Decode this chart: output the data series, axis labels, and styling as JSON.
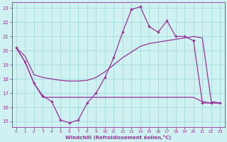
{
  "xlabel": "Windchill (Refroidissement éolien,°C)",
  "xlim": [
    -0.5,
    23.5
  ],
  "ylim": [
    14.6,
    23.4
  ],
  "yticks": [
    15,
    16,
    17,
    18,
    19,
    20,
    21,
    22,
    23
  ],
  "xticks": [
    0,
    1,
    2,
    3,
    4,
    5,
    6,
    7,
    8,
    9,
    10,
    11,
    12,
    13,
    14,
    15,
    16,
    17,
    18,
    19,
    20,
    21,
    22,
    23
  ],
  "bg_color": "#cff1f1",
  "grid_color": "#a8dede",
  "line_color": "#993399",
  "marker_line_x": [
    0,
    1,
    2,
    3,
    4,
    5,
    6,
    7,
    8,
    9,
    10,
    11,
    12,
    13,
    14,
    15,
    16,
    17,
    18,
    19,
    20,
    21,
    22,
    23
  ],
  "marker_line_y": [
    20.2,
    19.2,
    17.7,
    16.8,
    16.4,
    15.1,
    14.9,
    15.1,
    16.3,
    17.0,
    18.1,
    19.5,
    21.3,
    22.9,
    23.1,
    21.7,
    21.3,
    22.1,
    21.0,
    21.0,
    20.7,
    16.3,
    16.3,
    16.3
  ],
  "smooth_line_x": [
    0,
    1,
    2,
    3,
    4,
    5,
    6,
    7,
    8,
    9,
    10,
    11,
    12,
    13,
    14,
    15,
    16,
    17,
    18,
    19,
    20,
    21,
    22,
    23
  ],
  "smooth_line_y": [
    20.2,
    19.6,
    18.3,
    18.1,
    18.0,
    17.9,
    17.85,
    17.85,
    17.9,
    18.1,
    18.5,
    19.0,
    19.5,
    19.9,
    20.3,
    20.5,
    20.6,
    20.7,
    20.8,
    20.9,
    21.0,
    20.9,
    16.4,
    16.3
  ],
  "flat_line_x": [
    0,
    1,
    2,
    3,
    4,
    5,
    6,
    7,
    8,
    9,
    10,
    11,
    12,
    13,
    14,
    15,
    16,
    17,
    18,
    19,
    20,
    21,
    22,
    23
  ],
  "flat_line_y": [
    20.2,
    19.2,
    17.7,
    16.7,
    16.7,
    16.7,
    16.7,
    16.7,
    16.7,
    16.7,
    16.7,
    16.7,
    16.7,
    16.7,
    16.7,
    16.7,
    16.7,
    16.7,
    16.7,
    16.7,
    16.7,
    16.4,
    16.3,
    16.3
  ]
}
